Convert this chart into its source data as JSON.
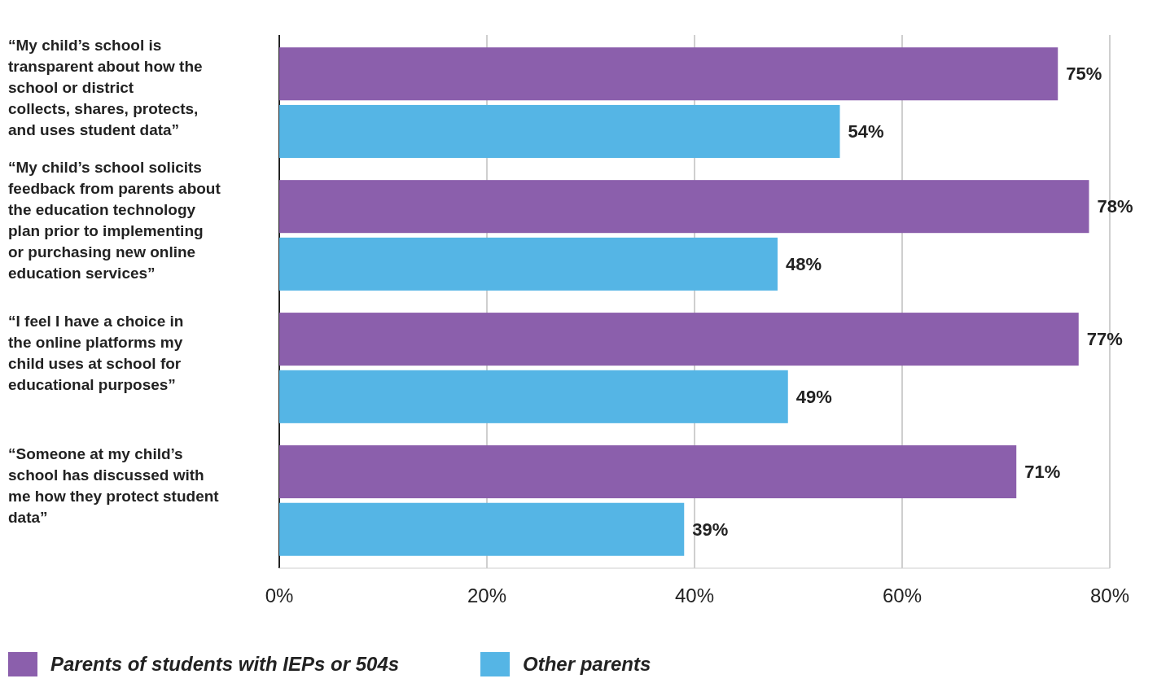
{
  "chart_data": {
    "type": "bar",
    "orientation": "horizontal",
    "categories": [
      "“My child’s school is transparent about how the school or district collects, shares, protects, and uses student data”",
      "“My child’s school solicits feedback from parents about the education technology plan prior to implementing or purchasing new online education services”",
      "“I feel I have a choice in the online platforms my child uses at school for educational purposes”",
      "“Someone at my child’s school has discussed with me how they protect student data”"
    ],
    "series": [
      {
        "name": "Parents of students with IEPs or 504s",
        "color": "#8b5fac",
        "values": [
          75,
          78,
          77,
          71
        ],
        "value_labels": [
          "75%",
          "78%",
          "77%",
          "71%"
        ]
      },
      {
        "name": "Other parents",
        "color": "#55b5e5",
        "values": [
          54,
          48,
          49,
          39
        ],
        "value_labels": [
          "54%",
          "48%",
          "49%",
          "39%"
        ]
      }
    ],
    "xlim": [
      0,
      80
    ],
    "xticks": [
      {
        "value": 0,
        "label": "0%"
      },
      {
        "value": 20,
        "label": "20%"
      },
      {
        "value": 40,
        "label": "40%"
      },
      {
        "value": 60,
        "label": "60%"
      },
      {
        "value": 80,
        "label": "80%"
      }
    ],
    "grid": "x",
    "legend": "bottom"
  }
}
